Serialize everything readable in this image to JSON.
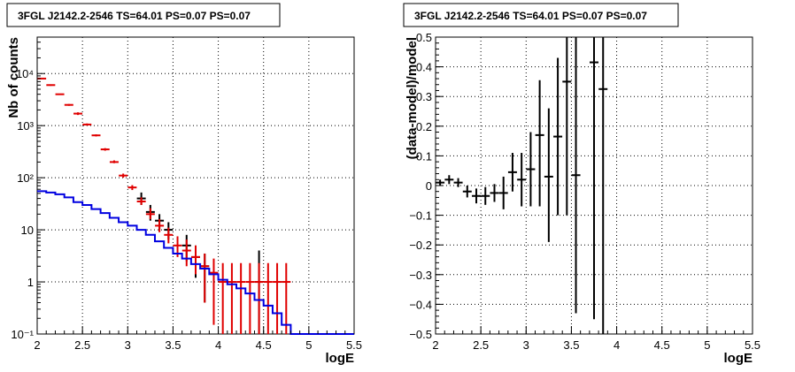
{
  "chart_data": [
    {
      "type": "scatter",
      "title": "3FGL J2142.2-2546 TS=64.01 PS=0.07 PS=0.07",
      "xlabel": "logE",
      "ylabel": "Nb of counts",
      "xlim": [
        2,
        5.5
      ],
      "ylim": [
        0.1,
        50000
      ],
      "yscale": "log",
      "grid": true,
      "x_ticks": [
        2,
        2.5,
        3,
        3.5,
        4,
        4.5,
        5,
        5.5
      ],
      "x_tick_labels": [
        "2",
        "2.5",
        "3",
        "3.5",
        "4",
        "4.5",
        "5",
        "5.5"
      ],
      "y_ticks": [
        0.1,
        1,
        10,
        100,
        1000,
        10000
      ],
      "y_tick_labels": [
        "10⁻¹",
        "1",
        "10",
        "10²",
        "10³",
        "10⁴"
      ],
      "series": [
        {
          "style": "errorbar",
          "color": "#000000",
          "x": [
            3.15,
            3.25,
            3.35,
            3.45,
            3.65,
            3.75,
            3.85,
            4.45
          ],
          "y": [
            40,
            22,
            15,
            10,
            5,
            3,
            2,
            1
          ],
          "ylo": [
            30,
            15,
            10,
            6.5,
            2.5,
            1.2,
            0.4,
            0.1
          ],
          "yhi": [
            52,
            30,
            20,
            14,
            8,
            5,
            3.5,
            4
          ]
        },
        {
          "style": "errorbar",
          "color": "#e00000",
          "x": [
            2.05,
            2.15,
            2.25,
            2.35,
            2.45,
            2.55,
            2.65,
            2.75,
            2.85,
            2.95,
            3.05,
            3.15,
            3.25,
            3.35,
            3.45,
            3.55,
            3.65,
            3.75,
            3.85,
            3.95,
            4.05,
            4.15,
            4.25,
            4.35,
            4.45,
            4.55,
            4.65,
            4.75
          ],
          "y": [
            8000,
            6000,
            4000,
            2500,
            1700,
            1050,
            650,
            350,
            200,
            110,
            65,
            35,
            20,
            12,
            8,
            5,
            4,
            3,
            2,
            1.5,
            1,
            1,
            1,
            1,
            1,
            1,
            1,
            1
          ],
          "ylo": [
            7800,
            5800,
            3900,
            2400,
            1600,
            1000,
            620,
            330,
            190,
            100,
            58,
            30,
            16,
            9,
            5.5,
            3,
            2,
            1.4,
            0.4,
            0.15,
            0.1,
            0.1,
            0.1,
            0.1,
            0.1,
            0.1,
            0.1,
            0.1
          ],
          "yhi": [
            8200,
            6200,
            4100,
            2600,
            1800,
            1100,
            680,
            370,
            215,
            120,
            72,
            42,
            26,
            16,
            11,
            7.5,
            6.5,
            5,
            3.5,
            2.8,
            2.3,
            2.3,
            2.3,
            2.3,
            2.3,
            2.3,
            2.3,
            2.3
          ]
        },
        {
          "style": "step",
          "color": "#0000e0",
          "bin_edges": [
            2.0,
            2.1,
            2.2,
            2.3,
            2.4,
            2.5,
            2.6,
            2.7,
            2.8,
            2.9,
            3.0,
            3.1,
            3.2,
            3.3,
            3.4,
            3.5,
            3.6,
            3.7,
            3.8,
            3.9,
            4.0,
            4.1,
            4.2,
            4.3,
            4.4,
            4.5,
            4.6,
            4.7,
            4.8,
            5.5
          ],
          "values": [
            55,
            52,
            48,
            42,
            34,
            30,
            25,
            21,
            17,
            14,
            12,
            10,
            8,
            6,
            4.5,
            3.5,
            2.8,
            2.2,
            1.8,
            1.4,
            1.1,
            0.9,
            0.75,
            0.6,
            0.45,
            0.35,
            0.25,
            0.15,
            0.1
          ]
        }
      ]
    },
    {
      "type": "scatter",
      "title": "3FGL J2142.2-2546 TS=64.01 PS=0.07 PS=0.07",
      "xlabel": "logE",
      "ylabel": "(data-model)/model",
      "xlim": [
        2,
        5.5
      ],
      "ylim": [
        -0.5,
        0.5
      ],
      "grid": true,
      "x_ticks": [
        2,
        2.5,
        3,
        3.5,
        4,
        4.5,
        5,
        5.5
      ],
      "x_tick_labels": [
        "2",
        "2.5",
        "3",
        "3.5",
        "4",
        "4.5",
        "5",
        "5.5"
      ],
      "y_ticks": [
        -0.5,
        -0.4,
        -0.3,
        -0.2,
        -0.1,
        0,
        0.1,
        0.2,
        0.3,
        0.4,
        0.5
      ],
      "y_tick_labels": [
        "−0.5",
        "−0.4",
        "−0.3",
        "−0.2",
        "−0.1",
        "0",
        "0.1",
        "0.2",
        "0.3",
        "0.4",
        "0.5"
      ],
      "series": [
        {
          "style": "errorbar",
          "color": "#000000",
          "x": [
            2.05,
            2.15,
            2.25,
            2.35,
            2.45,
            2.55,
            2.65,
            2.75,
            2.85,
            2.95,
            3.05,
            3.15,
            3.25,
            3.35,
            3.45,
            3.55,
            3.75,
            3.85
          ],
          "y": [
            0.01,
            0.02,
            0.01,
            -0.02,
            -0.035,
            -0.035,
            -0.025,
            -0.025,
            0.045,
            0.02,
            0.055,
            0.17,
            0.03,
            0.165,
            0.35,
            0.035,
            0.415,
            0.325
          ],
          "ylo": [
            0.0,
            0.005,
            -0.005,
            -0.04,
            -0.06,
            -0.065,
            -0.055,
            -0.08,
            -0.02,
            -0.07,
            -0.07,
            -0.07,
            -0.19,
            -0.1,
            -0.1,
            -0.43,
            -0.45,
            -0.5
          ],
          "yhi": [
            0.02,
            0.035,
            0.025,
            0.0,
            -0.01,
            -0.005,
            0.005,
            0.03,
            0.11,
            0.11,
            0.18,
            0.355,
            0.26,
            0.43,
            0.5,
            0.5,
            0.5,
            0.5
          ]
        }
      ]
    }
  ]
}
